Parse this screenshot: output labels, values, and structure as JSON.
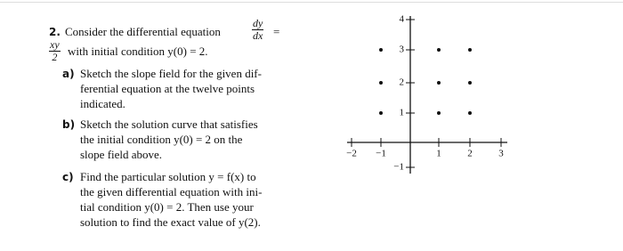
{
  "problem": {
    "number": "2.",
    "intro": "Consider the differential equation",
    "dy": "dy",
    "dx": "dx",
    "equals": "=",
    "xy": "xy",
    "two": "2",
    "condition": "with initial condition y(0) = 2."
  },
  "parts": [
    {
      "label": "a)",
      "lines": [
        "Sketch the slope field for the given dif-",
        "ferential equation at the twelve points",
        "indicated."
      ]
    },
    {
      "label": "b)",
      "lines": [
        "Sketch the solution curve that satisfies",
        "the initial condition y(0) = 2 on the",
        "slope field above."
      ]
    },
    {
      "label": "c)",
      "lines": [
        "Find the particular solution y = f(x) to",
        "the given differential equation with ini-",
        "tial condition y(0) = 2. Then use your",
        "solution to find the exact value of y(2)."
      ]
    }
  ],
  "graph": {
    "x_labels": [
      "−2",
      "−1",
      "1",
      "2",
      "3"
    ],
    "y_labels": [
      "4",
      "3",
      "2",
      "1",
      "−1"
    ]
  }
}
